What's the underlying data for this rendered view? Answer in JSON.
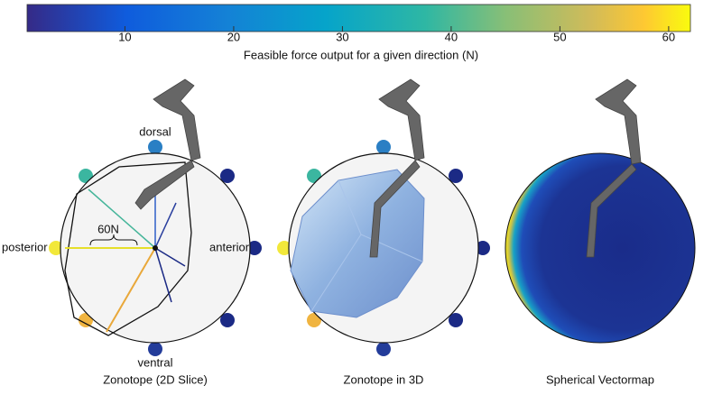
{
  "colorbar": {
    "label": "Feasible force output for a given direction (N)",
    "range": [
      1,
      62
    ],
    "ticks": [
      10,
      20,
      30,
      40,
      50,
      60
    ]
  },
  "annotations": {
    "dorsal": "dorsal",
    "anterior": "anterior",
    "ventral": "ventral",
    "posterior": "posterior",
    "scale": "60N"
  },
  "panels": [
    {
      "title": "Zonotope (2D Slice)"
    },
    {
      "title": "Zonotope in 3D"
    },
    {
      "title": "Spherical Vectormap"
    }
  ]
}
